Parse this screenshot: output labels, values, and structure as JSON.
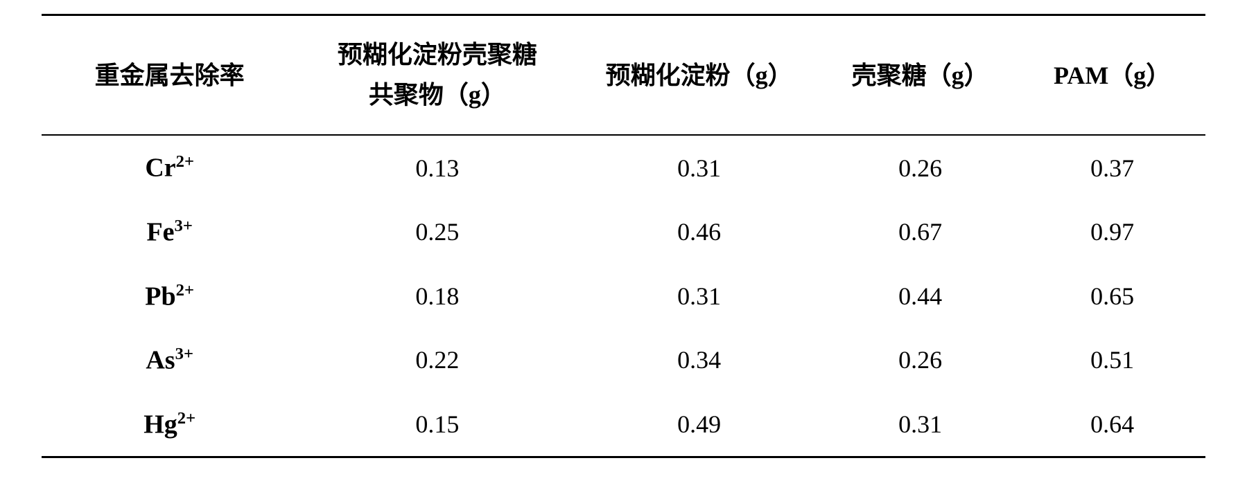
{
  "table": {
    "type": "table",
    "background_color": "#ffffff",
    "text_color": "#000000",
    "border_color": "#000000",
    "header_fontsize": 36,
    "cell_fontsize": 36,
    "label_fontsize": 38,
    "columns": [
      {
        "label": "重金属去除率",
        "width_pct": 22,
        "align": "center",
        "bold": true
      },
      {
        "label_line1": "预糊化淀粉壳聚糖",
        "label_line2": "共聚物（g）",
        "width_pct": 24,
        "align": "center",
        "bold": true,
        "multiline": true
      },
      {
        "label": "预糊化淀粉（g）",
        "width_pct": 21,
        "align": "center",
        "bold": true
      },
      {
        "label": "壳聚糖（g）",
        "width_pct": 17,
        "align": "center",
        "bold": true
      },
      {
        "label": "PAM（g）",
        "width_pct": 16,
        "align": "center",
        "bold": true
      }
    ],
    "rows": [
      {
        "ion_symbol": "Cr",
        "ion_charge": "2+",
        "values": [
          "0.13",
          "0.31",
          "0.26",
          "0.37"
        ]
      },
      {
        "ion_symbol": "Fe",
        "ion_charge": "3+",
        "values": [
          "0.25",
          "0.46",
          "0.67",
          "0.97"
        ]
      },
      {
        "ion_symbol": "Pb",
        "ion_charge": "2+",
        "values": [
          "0.18",
          "0.31",
          "0.44",
          "0.65"
        ]
      },
      {
        "ion_symbol": "As",
        "ion_charge": "3+",
        "values": [
          "0.22",
          "0.34",
          "0.26",
          "0.51"
        ]
      },
      {
        "ion_symbol": "Hg",
        "ion_charge": "2+",
        "values": [
          "0.15",
          "0.49",
          "0.31",
          "0.64"
        ]
      }
    ],
    "border_top_width": 3,
    "header_border_bottom_width": 2,
    "border_bottom_width": 3
  }
}
